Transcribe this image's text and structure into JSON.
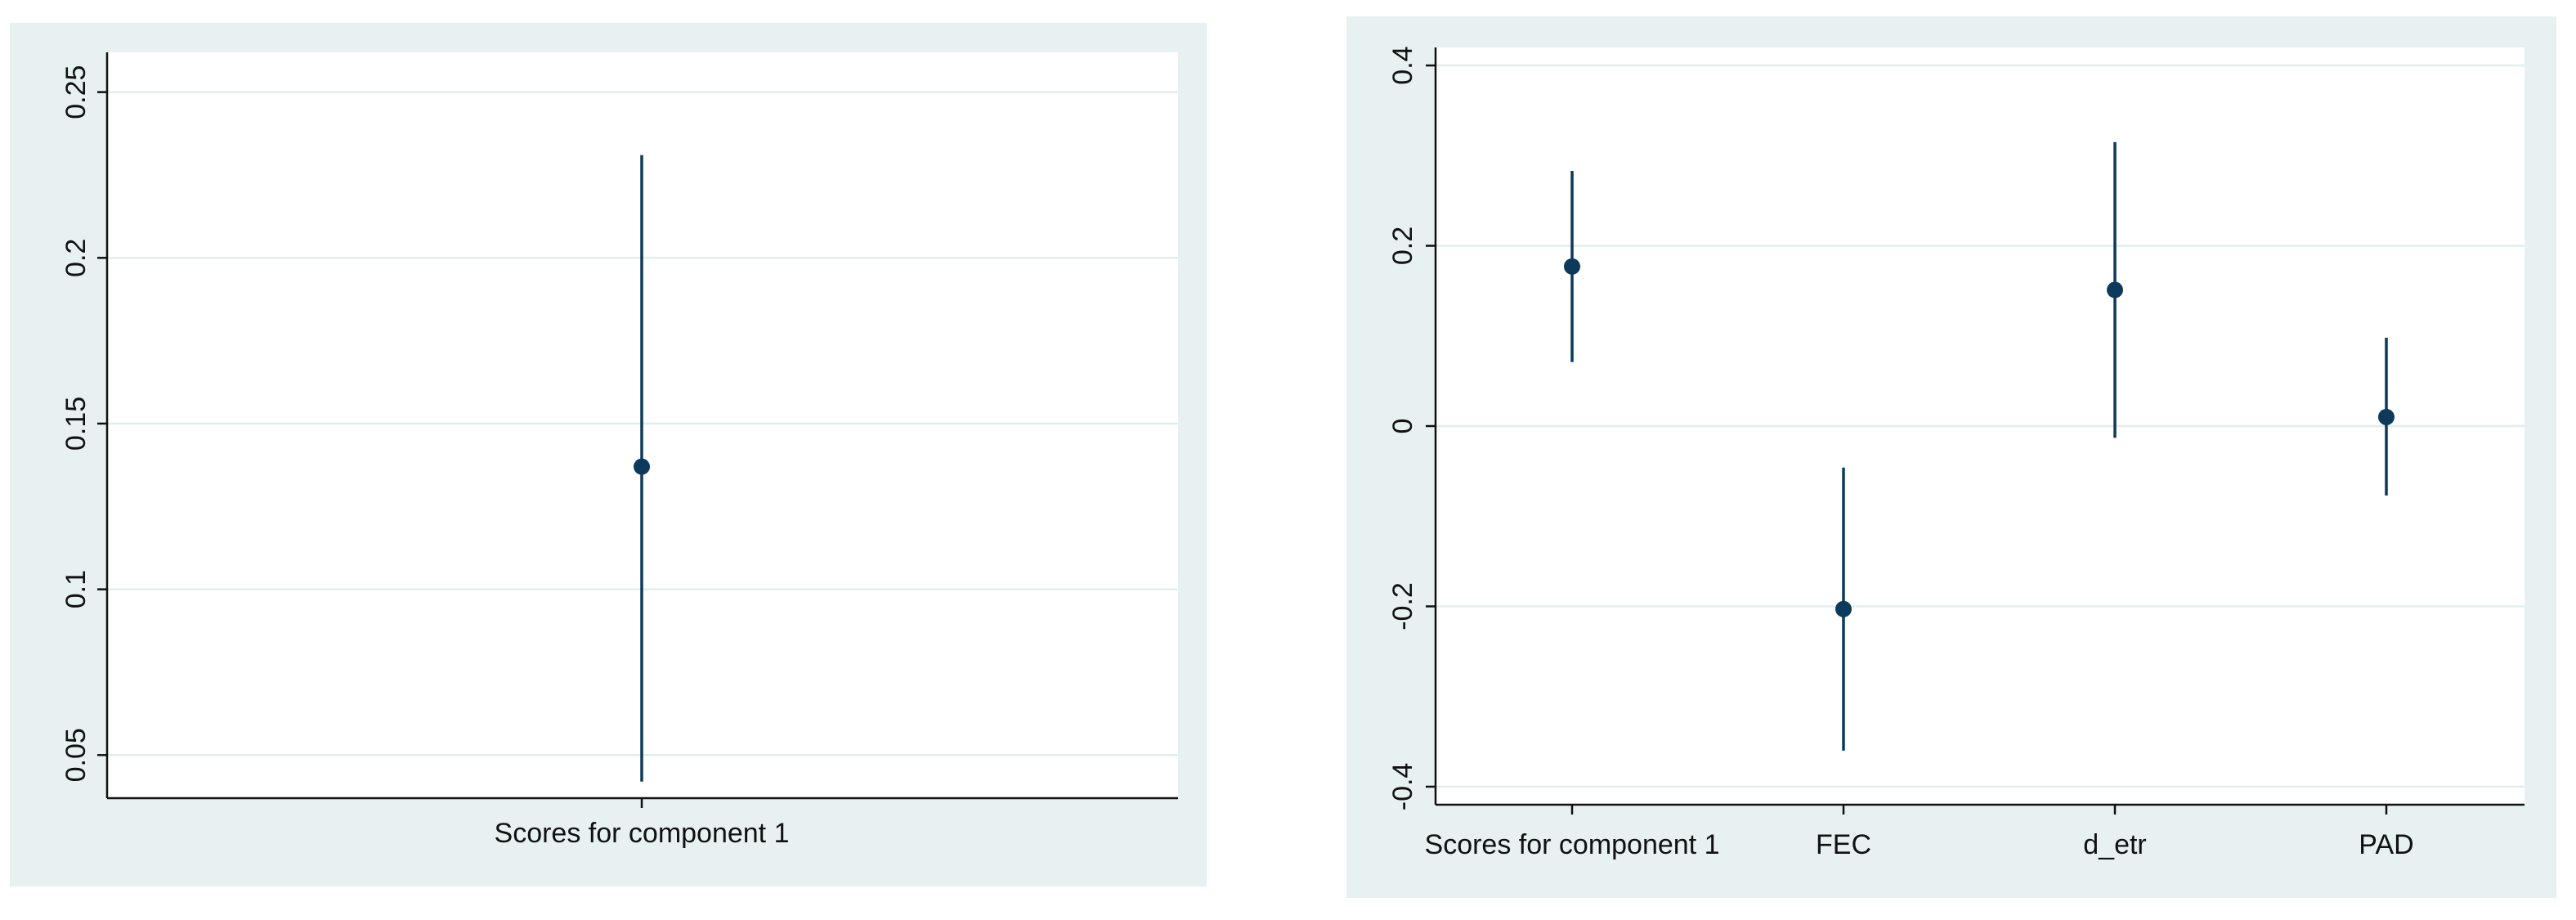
{
  "chart_data": [
    {
      "type": "scatter",
      "title": "",
      "xlabel": "",
      "ylabel": "",
      "categories": [
        "Scores for component 1"
      ],
      "series": [
        {
          "estimate": [
            0.137
          ],
          "ci_low": [
            0.042
          ],
          "ci_high": [
            0.231
          ]
        }
      ],
      "ylim": [
        0.037,
        0.262
      ],
      "yticks": [
        0.05,
        0.1,
        0.15,
        0.2,
        0.25
      ],
      "ytick_labels": [
        "0.05",
        "0.1",
        "0.15",
        "0.2",
        "0.25"
      ],
      "grid": true,
      "legend": "none",
      "colors": {
        "frame_background": "#e7f1f2",
        "plot_background": "#ffffff",
        "gridline": "#e3edee",
        "marker": "#0d3a5c",
        "axis": "#111111"
      }
    },
    {
      "type": "scatter",
      "title": "",
      "xlabel": "",
      "ylabel": "",
      "categories": [
        "Scores for component 1",
        "FEC",
        "d_etr",
        "PAD"
      ],
      "series": [
        {
          "estimate": [
            0.177,
            -0.203,
            0.151,
            0.01
          ],
          "ci_low": [
            0.071,
            -0.36,
            -0.013,
            -0.077
          ],
          "ci_high": [
            0.283,
            -0.046,
            0.315,
            0.098
          ]
        }
      ],
      "ylim": [
        -0.42,
        0.42
      ],
      "yticks": [
        -0.4,
        -0.2,
        0,
        0.2,
        0.4
      ],
      "ytick_labels": [
        "-0.4",
        "-0.2",
        "0",
        "0.2",
        "0.4"
      ],
      "grid": true,
      "legend": "none",
      "colors": {
        "frame_background": "#e7f1f2",
        "plot_background": "#ffffff",
        "gridline": "#e3edee",
        "marker": "#0d3a5c",
        "axis": "#111111"
      }
    }
  ]
}
